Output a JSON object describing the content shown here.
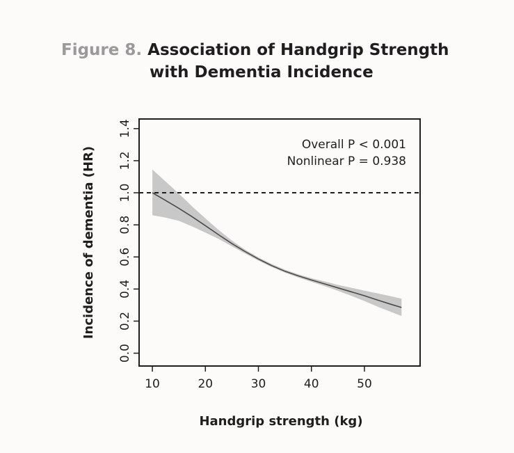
{
  "figure": {
    "label": "Figure 8.",
    "title_line1": "Association of Handgrip Strength",
    "title_line2": "with Dementia Incidence"
  },
  "chart_data": {
    "type": "line",
    "title": "Association of Handgrip Strength with Dementia Incidence",
    "xlabel": "Handgrip strength (kg)",
    "ylabel": "Incidence of dementia (HR)",
    "xlim": [
      7.5,
      60.5
    ],
    "ylim": [
      -0.08,
      1.46
    ],
    "xticks": [
      10,
      20,
      30,
      40,
      50
    ],
    "yticks": [
      0.0,
      0.2,
      0.4,
      0.6,
      0.8,
      1.0,
      1.2,
      1.4
    ],
    "ytick_labels": [
      "0.0",
      "0.2",
      "0.4",
      "0.6",
      "0.8",
      "1.0",
      "1.2",
      "1.4"
    ],
    "reference_line": {
      "y": 1.0,
      "style": "dashed"
    },
    "annotations": [
      "Overall P < 0.001",
      "Nonlinear P = 0.938"
    ],
    "annotation_placement": "top-right",
    "grid": false,
    "series": [
      {
        "type": "line",
        "color": "#4a4a4a",
        "x": [
          10,
          12.5,
          15,
          17.5,
          20,
          22.5,
          25,
          27.5,
          30,
          32.5,
          35,
          37.5,
          40,
          42.5,
          45,
          47.5,
          50,
          52.5,
          55,
          57
        ],
        "y": [
          1.0,
          0.952,
          0.903,
          0.851,
          0.795,
          0.738,
          0.683,
          0.633,
          0.587,
          0.546,
          0.511,
          0.482,
          0.456,
          0.432,
          0.407,
          0.383,
          0.358,
          0.331,
          0.305,
          0.285
        ]
      }
    ],
    "confidence_band": {
      "color": "#c8c8c8",
      "x": [
        10,
        12.5,
        15,
        17.5,
        20,
        22.5,
        25,
        27.5,
        30,
        32.5,
        35,
        37.5,
        40,
        42.5,
        45,
        47.5,
        50,
        52.5,
        55,
        57
      ],
      "lower": [
        0.86,
        0.845,
        0.825,
        0.79,
        0.752,
        0.712,
        0.666,
        0.621,
        0.577,
        0.537,
        0.502,
        0.472,
        0.445,
        0.418,
        0.389,
        0.358,
        0.325,
        0.29,
        0.257,
        0.232
      ],
      "upper": [
        1.145,
        1.07,
        0.995,
        0.915,
        0.84,
        0.768,
        0.702,
        0.645,
        0.597,
        0.556,
        0.521,
        0.492,
        0.468,
        0.447,
        0.426,
        0.408,
        0.39,
        0.373,
        0.355,
        0.34
      ]
    }
  }
}
